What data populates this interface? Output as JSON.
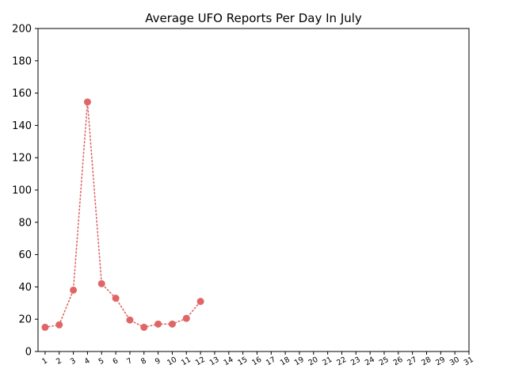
{
  "chart_data": {
    "type": "line",
    "title": "Average UFO Reports Per Day In July",
    "xlabel": "",
    "ylabel": "",
    "x": [
      1,
      2,
      3,
      4,
      5,
      6,
      7,
      8,
      9,
      10,
      11,
      12
    ],
    "xticks": [
      "1",
      "2",
      "3",
      "4",
      "5",
      "6",
      "7",
      "8",
      "9",
      "10",
      "11",
      "12",
      "13",
      "14",
      "15",
      "16",
      "17",
      "18",
      "19",
      "20",
      "21",
      "22",
      "23",
      "24",
      "25",
      "26",
      "27",
      "28",
      "29",
      "30",
      "31"
    ],
    "yticks": [
      0,
      20,
      40,
      60,
      80,
      100,
      120,
      140,
      160,
      180,
      200
    ],
    "xlim": [
      0.5,
      31
    ],
    "ylim": [
      0,
      200
    ],
    "series": [
      {
        "values": [
          15,
          16.5,
          38,
          154.5,
          42,
          33,
          19.5,
          15,
          17,
          17,
          20.5,
          31
        ],
        "color": "#e06666",
        "line_style": "dotted",
        "marker": "circle"
      }
    ],
    "grid": false
  }
}
